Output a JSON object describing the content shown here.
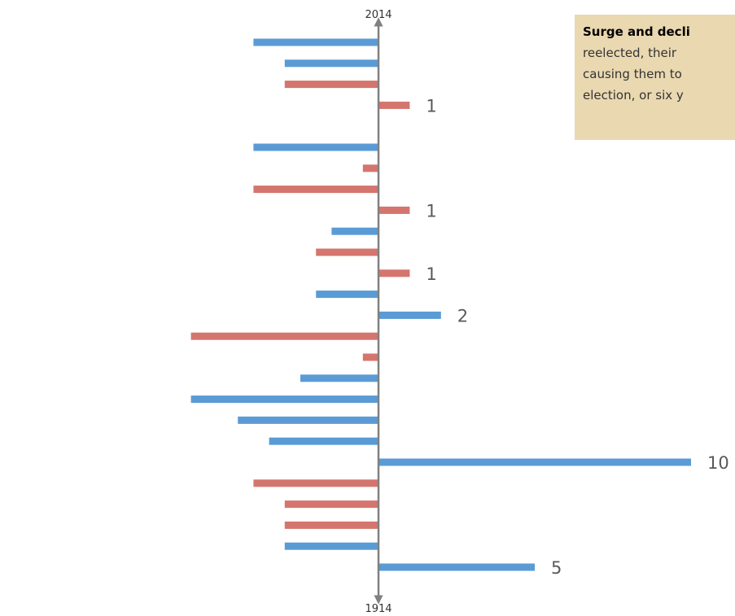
{
  "colors": {
    "background": "#ffffff",
    "axis": "#808080",
    "blue": "#5b9bd5",
    "red": "#d4756e",
    "note_bg": "#ead8b1",
    "label": "#595959"
  },
  "note": {
    "title": "Surge and decli",
    "line1": "reelected, their",
    "line2": "causing them to",
    "line3": "election, or six y"
  },
  "chart_data": {
    "type": "bar",
    "orientation": "horizontal",
    "axis_top_label": "2014",
    "axis_bottom_label": "1914",
    "xlim": [
      -6,
      10
    ],
    "bars": [
      {
        "value": -4,
        "color": "blue",
        "label": ""
      },
      {
        "value": -3,
        "color": "blue",
        "label": ""
      },
      {
        "value": -3,
        "color": "red",
        "label": ""
      },
      {
        "value": 1,
        "color": "red",
        "label": "1"
      },
      {
        "value": null,
        "color": "",
        "label": ""
      },
      {
        "value": -4,
        "color": "blue",
        "label": ""
      },
      {
        "value": -0.5,
        "color": "red",
        "label": ""
      },
      {
        "value": -4,
        "color": "red",
        "label": ""
      },
      {
        "value": 1,
        "color": "red",
        "label": "1"
      },
      {
        "value": -1.5,
        "color": "blue",
        "label": ""
      },
      {
        "value": -2,
        "color": "red",
        "label": ""
      },
      {
        "value": 1,
        "color": "red",
        "label": "1"
      },
      {
        "value": -2,
        "color": "blue",
        "label": ""
      },
      {
        "value": 2,
        "color": "blue",
        "label": "2"
      },
      {
        "value": -6,
        "color": "red",
        "label": ""
      },
      {
        "value": -0.5,
        "color": "red",
        "label": ""
      },
      {
        "value": -2.5,
        "color": "blue",
        "label": ""
      },
      {
        "value": -6,
        "color": "blue",
        "label": ""
      },
      {
        "value": -4.5,
        "color": "blue",
        "label": ""
      },
      {
        "value": -3.5,
        "color": "blue",
        "label": ""
      },
      {
        "value": 10,
        "color": "blue",
        "label": "10"
      },
      {
        "value": -4,
        "color": "red",
        "label": ""
      },
      {
        "value": -3,
        "color": "red",
        "label": ""
      },
      {
        "value": -3,
        "color": "red",
        "label": ""
      },
      {
        "value": -3,
        "color": "blue",
        "label": ""
      },
      {
        "value": 5,
        "color": "blue",
        "label": "5"
      }
    ]
  }
}
